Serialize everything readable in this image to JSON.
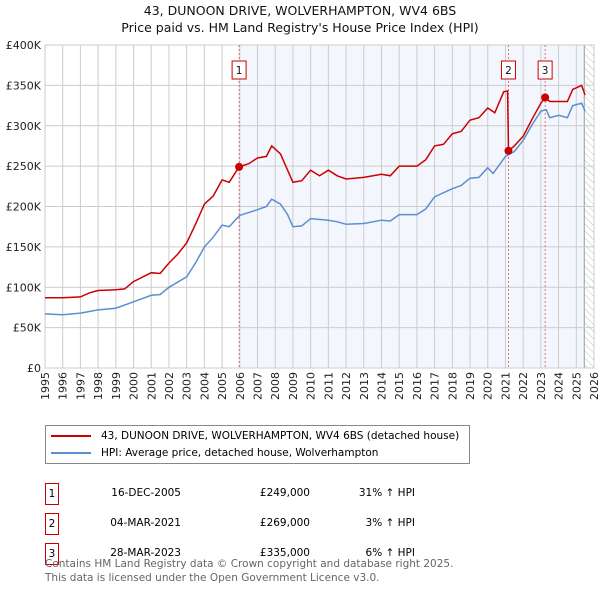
{
  "chart_data": {
    "type": "line",
    "title": "43, DUNOON DRIVE, WOLVERHAMPTON, WV4 6BS",
    "subtitle": "Price paid vs. HM Land Registry's House Price Index (HPI)",
    "xlim": [
      1995,
      2026
    ],
    "ylim": [
      0,
      400000
    ],
    "y_ticks": [
      {
        "v": 0,
        "label": "£0"
      },
      {
        "v": 50000,
        "label": "£50K"
      },
      {
        "v": 100000,
        "label": "£100K"
      },
      {
        "v": 150000,
        "label": "£150K"
      },
      {
        "v": 200000,
        "label": "£200K"
      },
      {
        "v": 250000,
        "label": "£250K"
      },
      {
        "v": 300000,
        "label": "£300K"
      },
      {
        "v": 350000,
        "label": "£350K"
      },
      {
        "v": 400000,
        "label": "£400K"
      }
    ],
    "x_ticks": [
      "1995",
      "1996",
      "1997",
      "1998",
      "1999",
      "2000",
      "2001",
      "2002",
      "2003",
      "2004",
      "2005",
      "2006",
      "2007",
      "2008",
      "2009",
      "2010",
      "2011",
      "2012",
      "2013",
      "2014",
      "2015",
      "2016",
      "2017",
      "2018",
      "2019",
      "2020",
      "2021",
      "2022",
      "2023",
      "2024",
      "2025",
      "2026"
    ],
    "grid": true,
    "shaded_from": 2005.96,
    "hatched_from": 2025.45,
    "series": [
      {
        "name": "43, DUNOON DRIVE, WOLVERHAMPTON, WV4 6BS (detached house)",
        "color": "#cc0000",
        "x": [
          1995,
          1996,
          1997,
          1997.5,
          1998,
          1999,
          1999.5,
          2000,
          2001,
          2001.5,
          2002,
          2002.5,
          2003,
          2003.5,
          2004,
          2004.5,
          2005,
          2005.4,
          2005.96,
          2006.5,
          2007,
          2007.5,
          2007.8,
          2008.3,
          2008.7,
          2009,
          2009.5,
          2010,
          2010.5,
          2011,
          2011.5,
          2012,
          2013,
          2014,
          2014.5,
          2015,
          2016,
          2016.5,
          2017,
          2017.5,
          2018,
          2018.5,
          2019,
          2019.5,
          2020,
          2020.4,
          2020.9,
          2021.12,
          2021.17,
          2021.5,
          2022,
          2022.5,
          2023,
          2023.24,
          2023.5,
          2024,
          2024.5,
          2024.8,
          2025.3,
          2025.5
        ],
        "y": [
          87000,
          87000,
          88000,
          93000,
          96000,
          97000,
          98000,
          107000,
          118000,
          117000,
          130000,
          141000,
          155000,
          178000,
          203000,
          213000,
          233000,
          230000,
          249000,
          253000,
          260000,
          262000,
          275000,
          265000,
          245000,
          230000,
          232000,
          245000,
          238000,
          245000,
          238000,
          234000,
          236000,
          240000,
          238000,
          250000,
          250000,
          258000,
          275000,
          277000,
          290000,
          293000,
          307000,
          310000,
          322000,
          316000,
          342000,
          343000,
          269000,
          275000,
          287000,
          308000,
          328000,
          335000,
          330000,
          330000,
          330000,
          345000,
          350000,
          338000
        ]
      },
      {
        "name": "HPI: Average price, detached house, Wolverhampton",
        "color": "#5b8fd0",
        "x": [
          1995,
          1996,
          1997,
          1998,
          1999,
          2000,
          2001,
          2001.5,
          2002,
          2003,
          2003.5,
          2004,
          2004.5,
          2005,
          2005.4,
          2006,
          2007,
          2007.5,
          2007.8,
          2008.3,
          2008.7,
          2009,
          2009.5,
          2010,
          2011,
          2011.5,
          2012,
          2013,
          2014,
          2014.5,
          2015,
          2016,
          2016.5,
          2017,
          2018,
          2018.5,
          2019,
          2019.5,
          2020,
          2020.3,
          2021,
          2021.5,
          2022,
          2022.5,
          2023,
          2023.3,
          2023.5,
          2024,
          2024.5,
          2024.8,
          2025.3,
          2025.5
        ],
        "y": [
          67000,
          66000,
          68000,
          72000,
          74000,
          82000,
          90000,
          91000,
          100000,
          113000,
          130000,
          150000,
          162000,
          177000,
          175000,
          189000,
          196000,
          200000,
          209000,
          203000,
          190000,
          175000,
          176000,
          185000,
          183000,
          181000,
          178000,
          179000,
          183000,
          182000,
          190000,
          190000,
          197000,
          212000,
          222000,
          226000,
          235000,
          236000,
          248000,
          241000,
          262000,
          268000,
          282000,
          301000,
          318000,
          320000,
          310000,
          313000,
          310000,
          325000,
          328000,
          318000
        ]
      }
    ],
    "sales": [
      {
        "id": "1",
        "x": 2005.96,
        "y": 249000,
        "date": "16-DEC-2005",
        "price": "£249,000",
        "hpi": "31% ↑ HPI"
      },
      {
        "id": "2",
        "x": 2021.17,
        "y": 269000,
        "date": "04-MAR-2021",
        "price": "£269,000",
        "hpi": "3% ↑ HPI"
      },
      {
        "id": "3",
        "x": 2023.24,
        "y": 335000,
        "date": "28-MAR-2023",
        "price": "£335,000",
        "hpi": "6% ↑ HPI"
      }
    ]
  },
  "legend": {
    "red": "43, DUNOON DRIVE, WOLVERHAMPTON, WV4 6BS (detached house)",
    "blue": "HPI: Average price, detached house, Wolverhampton"
  },
  "footer": {
    "line1": "Contains HM Land Registry data © Crown copyright and database right 2025.",
    "line2": "This data is licensed under the Open Government Licence v3.0."
  }
}
